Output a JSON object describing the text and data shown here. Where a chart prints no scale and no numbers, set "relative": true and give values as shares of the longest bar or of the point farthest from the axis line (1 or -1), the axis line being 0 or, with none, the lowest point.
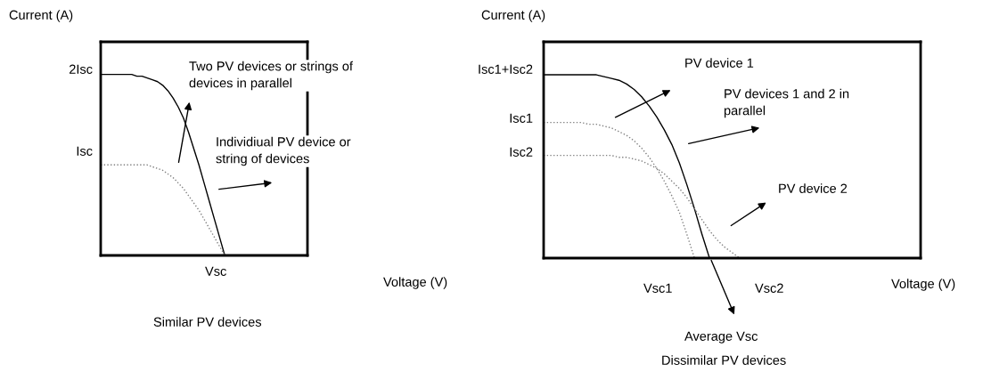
{
  "chart_data": [
    {
      "type": "line",
      "relative": true,
      "ylabel": "Current (A)",
      "xlabel": "Voltage (V)",
      "categories": [
        null,
        null,
        null,
        null,
        null,
        null,
        null,
        null,
        null,
        null,
        null,
        null,
        null,
        null,
        null,
        null,
        null,
        null,
        null,
        null,
        null,
        null,
        null,
        null,
        null,
        null,
        null,
        null,
        null,
        null,
        null,
        null,
        null,
        null,
        null,
        null,
        null,
        null,
        null,
        null,
        null
      ],
      "series": [
        {
          "color": "#000000",
          "line_style": "solid",
          "values": [
            1,
            1,
            1,
            1,
            1,
            1,
            1,
            0.99,
            0.99,
            0.98,
            0.97,
            0.96,
            0.94,
            0.91,
            0.87,
            0.82,
            0.76,
            0.68,
            0.59,
            0.5,
            0.4,
            0.3,
            0.2,
            0.1,
            0,
            null,
            null,
            null,
            null,
            null,
            null,
            null,
            null,
            null,
            null,
            null,
            null,
            null,
            null,
            null,
            null
          ]
        },
        {
          "color": "#808080",
          "line_style": "dotted",
          "values": [
            0.5,
            0.5,
            0.5,
            0.5,
            0.5,
            0.5,
            0.5,
            0.5,
            0.5,
            0.5,
            0.49,
            0.48,
            0.47,
            0.45,
            0.43,
            0.4,
            0.37,
            0.33,
            0.29,
            0.25,
            0.2,
            0.15,
            0.1,
            0.05,
            0,
            null,
            null,
            null,
            null,
            null,
            null,
            null,
            null,
            null,
            null,
            null,
            null,
            null,
            null,
            null,
            null
          ]
        }
      ],
      "annotations": [
        "2Isc",
        "Isc",
        "Vsc",
        "Two PV devices or strings of\ndevices in parallel",
        "Individiual PV device or\nstring of devices",
        "Similar PV devices"
      ]
    },
    {
      "type": "line",
      "relative": true,
      "ylabel": "Current (A)",
      "xlabel": "Voltage (V)",
      "categories": [
        null,
        null,
        null,
        null,
        null,
        null,
        null,
        null,
        null,
        null,
        null,
        null,
        null,
        null,
        null,
        null,
        null,
        null,
        null,
        null,
        null,
        null,
        null,
        null,
        null,
        null,
        null,
        null,
        null,
        null,
        null,
        null,
        null,
        null,
        null,
        null,
        null,
        null,
        null,
        null,
        null,
        null,
        null,
        null,
        null,
        null,
        null,
        null,
        null,
        null,
        null
      ],
      "series": [
        {
          "color": "#000000",
          "line_style": "solid",
          "values": [
            1,
            1,
            1,
            1,
            1,
            1,
            1,
            1,
            0.99,
            0.98,
            0.97,
            0.95,
            0.92,
            0.88,
            0.83,
            0.77,
            0.7,
            0.62,
            0.52,
            0.4,
            0.27,
            0.13,
            0,
            null,
            null,
            null,
            null,
            null,
            null,
            null,
            null,
            null,
            null,
            null,
            null,
            null,
            null,
            null,
            null,
            null,
            null,
            null,
            null,
            null,
            null,
            null,
            null,
            null,
            null,
            null,
            null
          ]
        },
        {
          "color": "#808080",
          "line_style": "dotted",
          "values": [
            0.74,
            0.74,
            0.74,
            0.74,
            0.74,
            0.74,
            0.73,
            0.73,
            0.72,
            0.71,
            0.69,
            0.67,
            0.64,
            0.6,
            0.55,
            0.49,
            0.42,
            0.34,
            0.25,
            0.13,
            0,
            null,
            null,
            null,
            null,
            null,
            null,
            null,
            null,
            null,
            null,
            null,
            null,
            null,
            null,
            null,
            null,
            null,
            null,
            null,
            null,
            null,
            null,
            null,
            null,
            null,
            null,
            null,
            null,
            null,
            null
          ]
        },
        {
          "color": "#808080",
          "line_style": "dotted",
          "values": [
            0.56,
            0.56,
            0.56,
            0.56,
            0.56,
            0.56,
            0.56,
            0.56,
            0.56,
            0.56,
            0.55,
            0.55,
            0.54,
            0.53,
            0.51,
            0.49,
            0.46,
            0.42,
            0.38,
            0.33,
            0.27,
            0.21,
            0.15,
            0.1,
            0.06,
            0.03,
            0,
            null,
            null,
            null,
            null,
            null,
            null,
            null,
            null,
            null,
            null,
            null,
            null,
            null,
            null,
            null,
            null,
            null,
            null,
            null,
            null,
            null,
            null,
            null,
            null
          ]
        }
      ],
      "annotations": [
        "Isc1+Isc2",
        "Isc1",
        "Isc2",
        "Vsc1",
        "Vsc2",
        "PV device 1",
        "PV devices 1 and 2 in\nparallel",
        "PV device 2",
        "Average Vsc",
        "Dissimilar PV devices"
      ]
    }
  ]
}
